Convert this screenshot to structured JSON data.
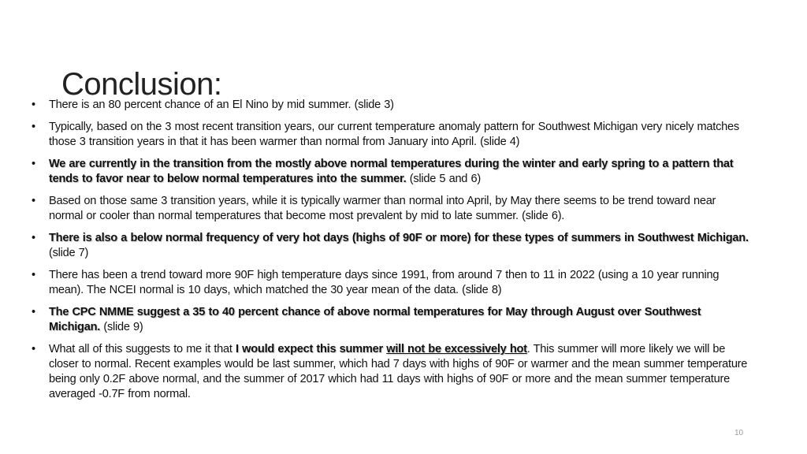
{
  "slide": {
    "title": "Conclusion:",
    "page_number": "10",
    "bullets": [
      {
        "segments": [
          {
            "text": "There is an 80 percent chance of an El Nino by mid summer. "
          },
          {
            "text": " (slide 3)"
          }
        ]
      },
      {
        "segments": [
          {
            "text": "Typically, based on the 3 most recent transition years, our current temperature anomaly pattern for Southwest Michigan very nicely matches those 3 transition years in that it has been warmer than normal from January into  April. (slide 4)"
          }
        ]
      },
      {
        "segments": [
          {
            "text": "We are currently in the transition from the mostly above normal temperatures during the winter and early spring to a pattern that tends to favor near to below normal temperatures into the summer.",
            "bold": true
          },
          {
            "text": " (slide 5 and 6)"
          }
        ]
      },
      {
        "segments": [
          {
            "text": "Based on those same 3 transition years, while it is typically warmer than normal into April, by May there seems to be trend toward near  normal or cooler than normal temperatures that become most prevalent by mid to late summer. (slide 6)."
          }
        ]
      },
      {
        "segments": [
          {
            "text": "There is also a below normal frequency of very hot days (highs of 90F or more) for these types of summers in Southwest Michigan.",
            "bold": true
          },
          {
            "text": " (slide 7)"
          }
        ]
      },
      {
        "segments": [
          {
            "text": "There has been a trend toward more 90F high temperature days since 1991, from around 7 then to 11 in 2022 (using a 10 year running  mean).  The NCEI normal is 10 days, which matched the 30 year mean of the data. (slide 8)"
          }
        ]
      },
      {
        "segments": [
          {
            "text": "The CPC NMME  suggest a 35 to 40 percent chance of above normal temperatures for May through August over Southwest Michigan.",
            "bold": true
          },
          {
            "text": " (slide 9)"
          }
        ]
      },
      {
        "segments": [
          {
            "text": "What all of this suggests to me it that "
          },
          {
            "text": "I would expect this summer ",
            "bold": true
          },
          {
            "text": "will  not be excessively hot",
            "bold": true,
            "underline": true
          },
          {
            "text": ". This summer  will more likely we will be closer to normal.  Recent examples would be last summer, which had 7 days with highs of 90F or warmer and the mean summer temperature being only 0.2F above normal, and the summer  of 2017 which had 11 days with highs of 90F or more and the mean summer temperature averaged -0.7F from normal."
          }
        ]
      }
    ],
    "bullet_glyph": "•"
  }
}
